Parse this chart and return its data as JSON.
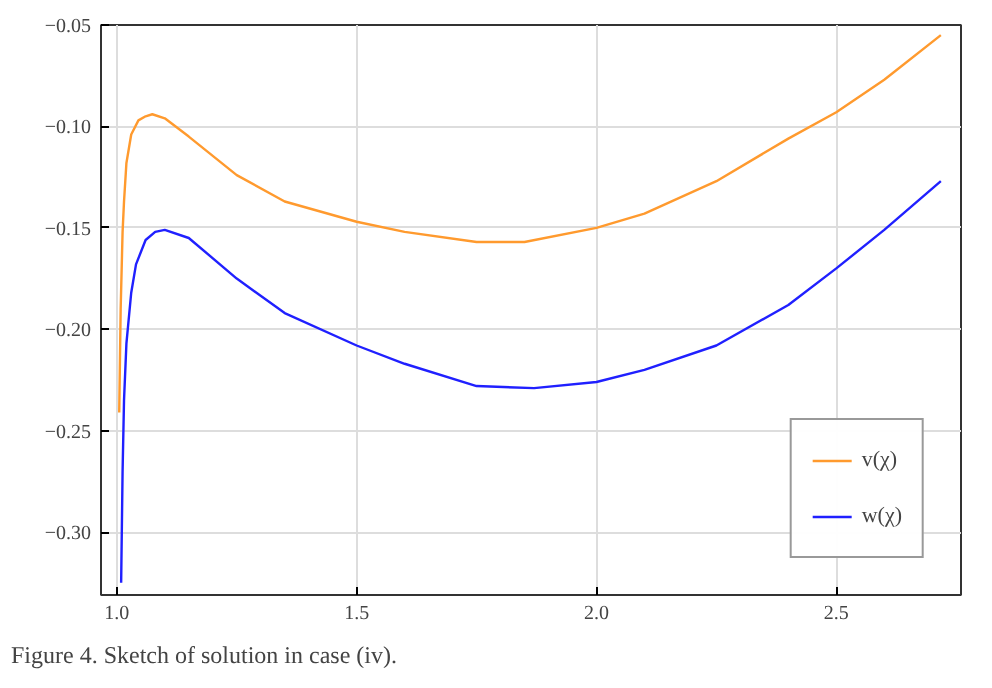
{
  "chart_data": {
    "type": "line",
    "annotations": [
      "Figure 4. Sketch of solution in case (iv)."
    ],
    "series": [
      {
        "name": "v(χ)",
        "color": "#ff9a2e",
        "x": [
          1.005,
          1.008,
          1.012,
          1.015,
          1.02,
          1.03,
          1.045,
          1.06,
          1.074,
          1.1,
          1.15,
          1.25,
          1.35,
          1.5,
          1.6,
          1.75,
          1.85,
          2.0,
          2.1,
          2.25,
          2.4,
          2.5,
          2.6,
          2.718
        ],
        "values": [
          -0.241,
          -0.19,
          -0.152,
          -0.137,
          -0.118,
          -0.104,
          -0.097,
          -0.095,
          -0.094,
          -0.096,
          -0.105,
          -0.124,
          -0.137,
          -0.147,
          -0.152,
          -0.157,
          -0.157,
          -0.15,
          -0.143,
          -0.127,
          -0.106,
          -0.093,
          -0.077,
          -0.055
        ]
      },
      {
        "name": "w(χ)",
        "color": "#2020ff",
        "x": [
          1.009,
          1.012,
          1.015,
          1.02,
          1.03,
          1.04,
          1.06,
          1.08,
          1.1,
          1.15,
          1.25,
          1.35,
          1.5,
          1.6,
          1.75,
          1.87,
          2.0,
          2.1,
          2.25,
          2.4,
          2.5,
          2.6,
          2.718
        ],
        "values": [
          -0.325,
          -0.27,
          -0.235,
          -0.207,
          -0.182,
          -0.168,
          -0.156,
          -0.152,
          -0.151,
          -0.155,
          -0.175,
          -0.192,
          -0.208,
          -0.217,
          -0.228,
          -0.229,
          -0.226,
          -0.22,
          -0.208,
          -0.188,
          -0.17,
          -0.151,
          -0.127
        ]
      }
    ],
    "xlim": [
      0.967,
      2.76
    ],
    "ylim": [
      -0.331,
      -0.05
    ],
    "xticks": [
      {
        "value": 1.0,
        "label": "1.0"
      },
      1.5,
      {
        "value": 2.0,
        "label": "2.0"
      },
      2.5
    ],
    "yticks": [
      {
        "value": -0.05,
        "label": "−0.05"
      },
      {
        "value": -0.1,
        "label": "−0.10"
      },
      {
        "value": -0.15,
        "label": "−0.15"
      },
      {
        "value": -0.2,
        "label": "−0.20"
      },
      {
        "value": -0.25,
        "label": "−0.25"
      },
      {
        "value": -0.3,
        "label": "−0.30"
      }
    ],
    "grid": true,
    "legend": "bottom right",
    "marker": "none",
    "line_style": "solid"
  }
}
